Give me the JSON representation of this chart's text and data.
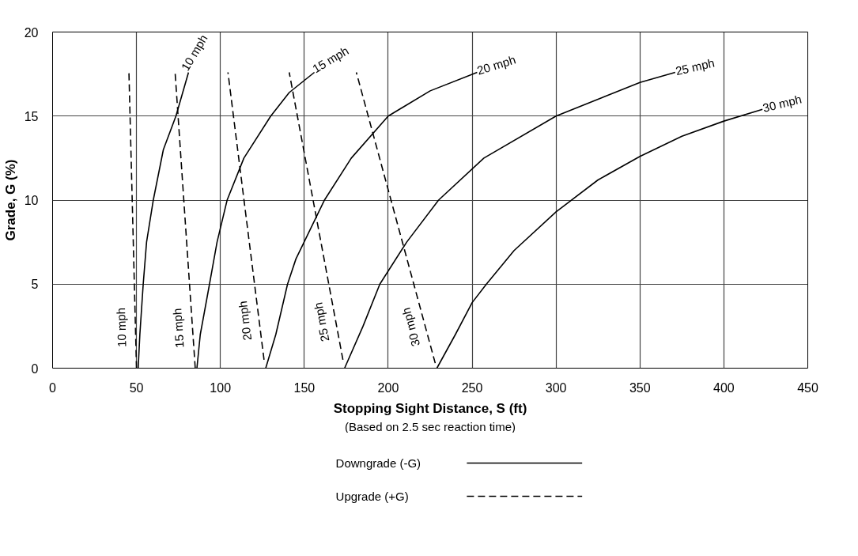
{
  "chart_data": {
    "type": "line",
    "xlabel": "Stopping Sight Distance, S (ft)",
    "ylabel": "Grade, G (%)",
    "xlim": [
      0,
      450
    ],
    "xticks": [
      0,
      50,
      100,
      150,
      200,
      250,
      300,
      350,
      400,
      450
    ],
    "ylim": [
      0,
      20
    ],
    "yticks": [
      0,
      5,
      10,
      15,
      20
    ],
    "grid": true,
    "legend": "bottom",
    "marker": "none",
    "series": [
      {
        "name": "Downgrade (-G)",
        "color": "#000000",
        "line_style": "solid",
        "x": [
          51,
          52,
          54,
          56,
          60,
          66,
          73.5,
          81
        ],
        "values": [
          0,
          2,
          5,
          7.5,
          10,
          13,
          15,
          17.6
        ]
      },
      {
        "color": "#000000",
        "line_style": "solid",
        "x": [
          86,
          88,
          93.5,
          98,
          104,
          114,
          130,
          141,
          156
        ],
        "values": [
          0,
          2,
          5,
          7.5,
          10,
          12.5,
          15,
          16.4,
          17.6
        ]
      },
      {
        "color": "#000000",
        "line_style": "solid",
        "x": [
          127,
          133,
          140,
          145,
          162,
          178,
          200,
          225,
          253
        ],
        "values": [
          0,
          2,
          5,
          6.5,
          10,
          12.5,
          15,
          16.5,
          17.6
        ]
      },
      {
        "color": "#000000",
        "line_style": "solid",
        "x": [
          174,
          185,
          195,
          211,
          230,
          257,
          300,
          350,
          371
        ],
        "values": [
          0,
          2.5,
          5,
          7.5,
          10,
          12.5,
          15,
          17,
          17.6
        ]
      },
      {
        "color": "#000000",
        "line_style": "solid",
        "x": [
          229,
          240,
          250,
          258.5,
          275,
          300,
          325,
          350,
          375,
          400,
          423
        ],
        "values": [
          0,
          2,
          3.9,
          5,
          7,
          9.3,
          11.2,
          12.6,
          13.8,
          14.7,
          15.4
        ]
      },
      {
        "name": "Upgrade (+G)",
        "color": "#000000",
        "line_style": "dashed",
        "x": [
          50,
          45.5
        ],
        "values": [
          0,
          17.6
        ]
      },
      {
        "color": "#000000",
        "line_style": "dashed",
        "x": [
          85,
          73
        ],
        "values": [
          0,
          17.6
        ]
      },
      {
        "color": "#000000",
        "line_style": "dashed",
        "x": [
          126,
          104.5
        ],
        "values": [
          0.5,
          17.6
        ]
      },
      {
        "color": "#000000",
        "line_style": "dashed",
        "x": [
          173,
          141
        ],
        "values": [
          0.5,
          17.6
        ]
      },
      {
        "color": "#000000",
        "line_style": "dashed",
        "x": [
          228,
          181
        ],
        "values": [
          0.3,
          17.6
        ]
      }
    ],
    "annotations": [
      {
        "text": "10 mph",
        "x": 81,
        "y": 17.6
      },
      {
        "text": "15 mph",
        "x": 156,
        "y": 17.6
      },
      {
        "text": "20 mph",
        "x": 253,
        "y": 17.6
      },
      {
        "text": "25 mph",
        "x": 371,
        "y": 17.6
      },
      {
        "text": "30 mph",
        "x": 423,
        "y": 15.4
      },
      {
        "text": "10 mph",
        "x": 50,
        "y": 0
      },
      {
        "text": "15 mph",
        "x": 85,
        "y": 0
      },
      {
        "text": "20 mph",
        "x": 126,
        "y": 0.5
      },
      {
        "text": "25 mph",
        "x": 173,
        "y": 0.5
      },
      {
        "text": "30 mph",
        "x": 228,
        "y": 0.3
      },
      "(Based on 2.5 sec reaction time)"
    ]
  }
}
